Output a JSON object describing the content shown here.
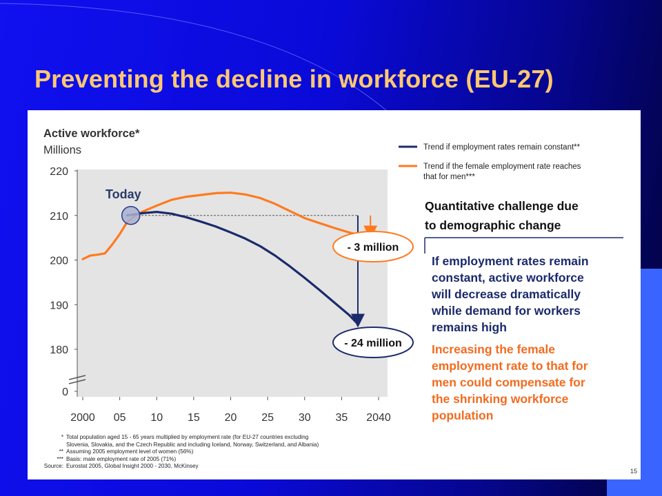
{
  "slide": {
    "title": "Preventing the decline in workforce (EU-27)",
    "page_number": "15"
  },
  "colors": {
    "background": "#0a0ad8",
    "title": "#ffc870",
    "navy_series": "#1b2a6b",
    "orange_series": "#ff7a1e",
    "orange_text": "#f26b1f",
    "plot_bg": "#e4e4e4"
  },
  "chart_data": {
    "type": "line",
    "title": "Active workforce*",
    "ylabel": "Millions",
    "xlabel": "",
    "x_tick_labels": [
      "2000",
      "05",
      "10",
      "15",
      "20",
      "25",
      "30",
      "35",
      "2040"
    ],
    "x_tick_values": [
      2000,
      2005,
      2010,
      2015,
      2020,
      2025,
      2030,
      2035,
      2040
    ],
    "y_tick_labels": [
      "220",
      "210",
      "200",
      "190",
      "180",
      "0"
    ],
    "y_tick_values": [
      220,
      210,
      200,
      190,
      180,
      0
    ],
    "xlim": [
      2000,
      2041
    ],
    "ylim": [
      175,
      220
    ],
    "axis_break": true,
    "grid": false,
    "legend_position": "top-right",
    "series": [
      {
        "name": "Trend if employment rates remain constant**",
        "color": "#1b2a6b",
        "x": [
          2006,
          2008,
          2010,
          2012,
          2014,
          2016,
          2018,
          2020,
          2022,
          2024,
          2026,
          2028,
          2030,
          2032,
          2034,
          2036,
          2037
        ],
        "y": [
          210.0,
          210.5,
          210.8,
          210.4,
          209.6,
          208.6,
          207.5,
          206.2,
          204.8,
          203.1,
          201.0,
          198.6,
          196.0,
          193.3,
          190.5,
          187.7,
          186.0
        ]
      },
      {
        "name": "Trend if the female employment rate reaches that for men***",
        "color": "#ff7a1e",
        "x": [
          2000,
          2001,
          2002,
          2003,
          2004,
          2005,
          2006,
          2007,
          2008,
          2010,
          2012,
          2014,
          2016,
          2018,
          2020,
          2022,
          2024,
          2026,
          2028,
          2030,
          2032,
          2034,
          2036,
          2037
        ],
        "y": [
          200.2,
          201.0,
          201.2,
          201.5,
          203.5,
          205.8,
          208.5,
          209.8,
          210.8,
          212.2,
          213.5,
          214.2,
          214.6,
          215.0,
          215.1,
          214.7,
          213.9,
          212.6,
          211.0,
          209.4,
          208.3,
          207.2,
          206.2,
          205.8
        ]
      }
    ],
    "reference_level": 210,
    "annotations": {
      "today": "Today",
      "gap_small": "- 3 million",
      "gap_large": "- 24 million"
    }
  },
  "right_panel": {
    "heading_line1": "Quantitative challenge due",
    "heading_line2": "to demographic change",
    "blue_text_lines": [
      "If employment rates remain",
      "constant, active workforce",
      "will decrease dramatically",
      "while demand for workers",
      "remains high"
    ],
    "orange_text_lines": [
      "Increasing the female",
      "employment rate to that for",
      "men could compensate for",
      "the shrinking workforce",
      "population"
    ]
  },
  "footnotes": [
    {
      "mark": "*",
      "lines": [
        "Total population aged 15 - 65 years multiplied by employment rate (for EU-27 countries excluding",
        "Slovenia, Slovakia, and the Czech Republic and including Iceland, Norway, Switzerland, and Albania)"
      ]
    },
    {
      "mark": "**",
      "lines": [
        "Assuming 2005 employment level of women (56%)"
      ]
    },
    {
      "mark": "***",
      "lines": [
        "Basis: male employment rate of 2005 (71%)"
      ]
    },
    {
      "mark": "Source:",
      "lines": [
        "Eurostat 2005, Global Insight 2000 - 2030, McKinsey"
      ]
    }
  ]
}
